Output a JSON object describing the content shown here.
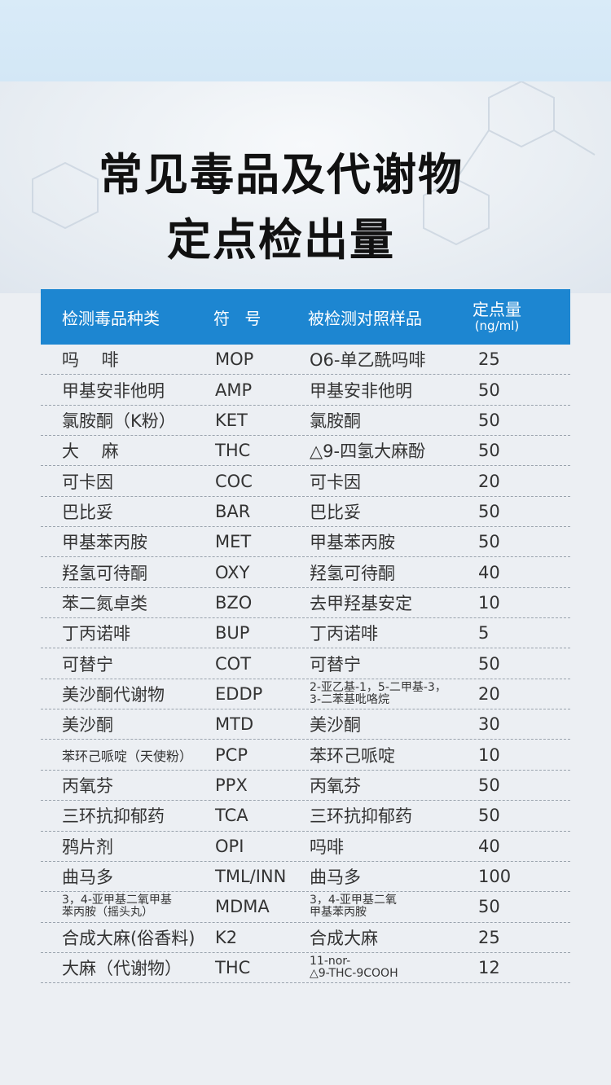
{
  "title_line1": "常见毒品及代谢物",
  "title_line2": "定点检出量",
  "headers": {
    "category": "检测毒品种类",
    "symbol": "符 号",
    "reference": "被检测对照样品",
    "cutoff": "定点量",
    "unit": "(ng/ml)"
  },
  "rows": [
    {
      "category": "吗　 啡",
      "symbol": "MOP",
      "reference": "O6-单乙酰吗啡",
      "cutoff": "25"
    },
    {
      "category": "甲基安非他明",
      "symbol": "AMP",
      "reference": "甲基安非他明",
      "cutoff": "50"
    },
    {
      "category": "氯胺酮（K粉）",
      "symbol": "KET",
      "reference": "氯胺酮",
      "cutoff": "50"
    },
    {
      "category": "大　 麻",
      "symbol": "THC",
      "reference": "△9-四氢大麻酚",
      "cutoff": "50"
    },
    {
      "category": "可卡因",
      "symbol": "COC",
      "reference": "可卡因",
      "cutoff": "20"
    },
    {
      "category": "巴比妥",
      "symbol": "BAR",
      "reference": "巴比妥",
      "cutoff": "50"
    },
    {
      "category": "甲基苯丙胺",
      "symbol": "MET",
      "reference": "甲基苯丙胺",
      "cutoff": "50"
    },
    {
      "category": "羟氢可待酮",
      "symbol": "OXY",
      "reference": "羟氢可待酮",
      "cutoff": "40"
    },
    {
      "category": "苯二氮卓类",
      "symbol": "BZO",
      "reference": "去甲羟基安定",
      "cutoff": "10"
    },
    {
      "category": "丁丙诺啡",
      "symbol": "BUP",
      "reference": "丁丙诺啡",
      "cutoff": "5"
    },
    {
      "category": "可替宁",
      "symbol": "COT",
      "reference": "可替宁",
      "cutoff": "50"
    },
    {
      "category": "美沙酮代谢物",
      "symbol": "EDDP",
      "reference_lines": [
        "2-亚乙基-1，5-二甲基-3，",
        "3-二苯基吡咯烷"
      ],
      "cutoff": "20"
    },
    {
      "category": "美沙酮",
      "symbol": "MTD",
      "reference": "美沙酮",
      "cutoff": "30"
    },
    {
      "category_small": "苯环己哌啶（天使粉）",
      "symbol": "PCP",
      "reference": "苯环己哌啶",
      "cutoff": "10"
    },
    {
      "category": "丙氧芬",
      "symbol": "PPX",
      "reference": "丙氧芬",
      "cutoff": "50"
    },
    {
      "category": "三环抗抑郁药",
      "symbol": "TCA",
      "reference": "三环抗抑郁药",
      "cutoff": "50"
    },
    {
      "category": "鸦片剂",
      "symbol": "OPI",
      "reference": "吗啡",
      "cutoff": "40"
    },
    {
      "category": "曲马多",
      "symbol": "TML/INN",
      "reference": "曲马多",
      "cutoff": "100"
    },
    {
      "category_lines": [
        "3，4-亚甲基二氧甲基",
        "苯丙胺（摇头丸）"
      ],
      "symbol": "MDMA",
      "reference_lines": [
        "3，4-亚甲基二氧",
        "甲基苯丙胺"
      ],
      "cutoff": "50"
    },
    {
      "category": "合成大麻(俗香料)",
      "symbol": "K2",
      "reference": "合成大麻",
      "cutoff": "25"
    },
    {
      "category": "大麻（代谢物）",
      "symbol": "THC",
      "reference_lines": [
        "11-nor-",
        "△9-THC-9COOH"
      ],
      "cutoff": "12"
    }
  ]
}
